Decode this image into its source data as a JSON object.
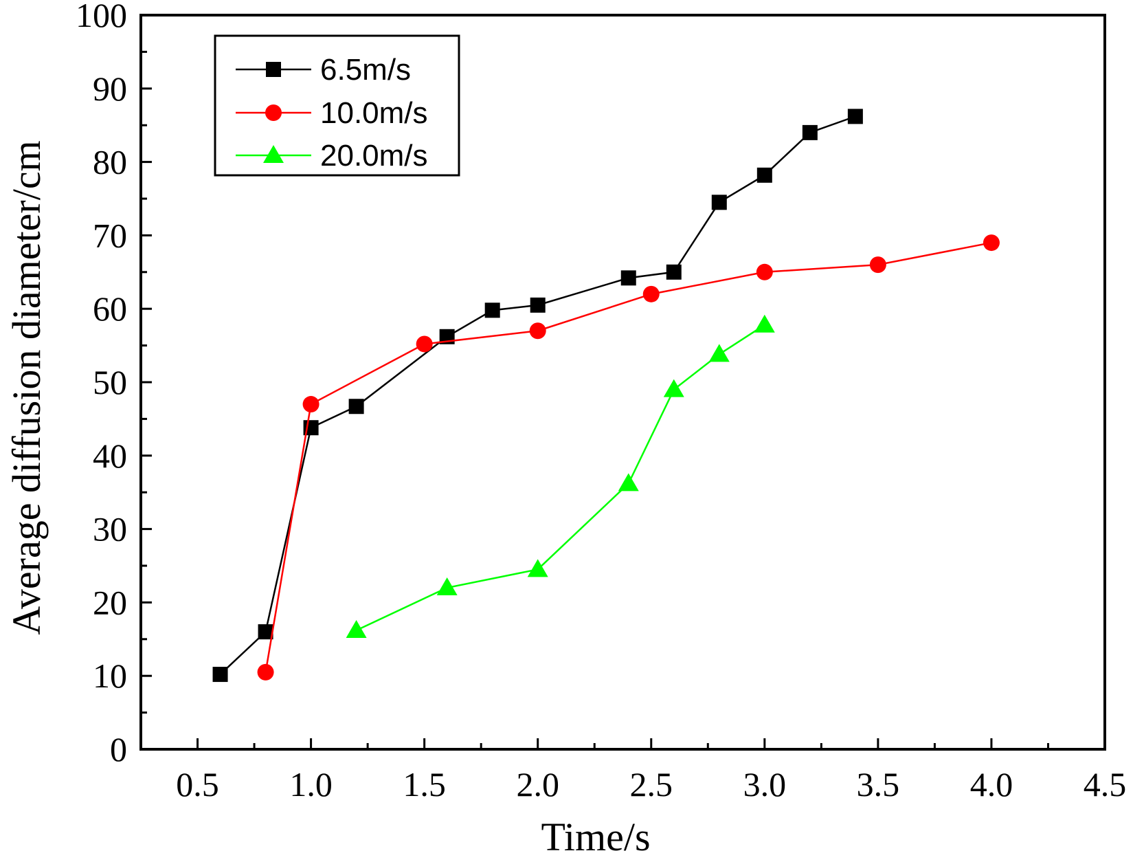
{
  "chart_data": {
    "type": "line",
    "title": "",
    "xlabel": "Time/s",
    "ylabel": "Average diffusion diameter/cm",
    "xlim": [
      0.25,
      4.5
    ],
    "ylim": [
      0,
      100
    ],
    "x_ticks": [
      0.5,
      1.0,
      1.5,
      2.0,
      2.5,
      3.0,
      3.5,
      4.0,
      4.5
    ],
    "x_tick_labels": [
      "0.5",
      "1.0",
      "1.5",
      "2.0",
      "2.5",
      "3.0",
      "3.5",
      "4.0",
      "4.5"
    ],
    "y_ticks": [
      0,
      10,
      20,
      30,
      40,
      50,
      60,
      70,
      80,
      90,
      100
    ],
    "y_tick_labels": [
      "0",
      "10",
      "20",
      "30",
      "40",
      "50",
      "60",
      "70",
      "80",
      "90",
      "100"
    ],
    "grid": false,
    "legend_position": "top-left",
    "series": [
      {
        "name": "6.5m/s",
        "color": "#000000",
        "marker": "square",
        "x": [
          0.6,
          0.8,
          1.0,
          1.2,
          1.6,
          1.8,
          2.0,
          2.4,
          2.6,
          2.8,
          3.0,
          3.2,
          3.4
        ],
        "y": [
          10.2,
          16.0,
          43.8,
          46.7,
          56.2,
          59.8,
          60.5,
          64.2,
          65.0,
          74.5,
          78.2,
          84.0,
          86.2
        ]
      },
      {
        "name": "10.0m/s",
        "color": "#ff0000",
        "marker": "circle",
        "x": [
          0.8,
          1.0,
          1.5,
          2.0,
          2.5,
          3.0,
          3.5,
          4.0
        ],
        "y": [
          10.5,
          47.0,
          55.2,
          57.0,
          62.0,
          65.0,
          66.0,
          69.0
        ]
      },
      {
        "name": "20.0m/s",
        "color": "#00ff00",
        "marker": "triangle",
        "x": [
          1.2,
          1.6,
          2.0,
          2.4,
          2.6,
          2.8,
          3.0
        ],
        "y": [
          16.2,
          22.0,
          24.5,
          36.2,
          49.0,
          53.8,
          57.8
        ]
      }
    ]
  }
}
